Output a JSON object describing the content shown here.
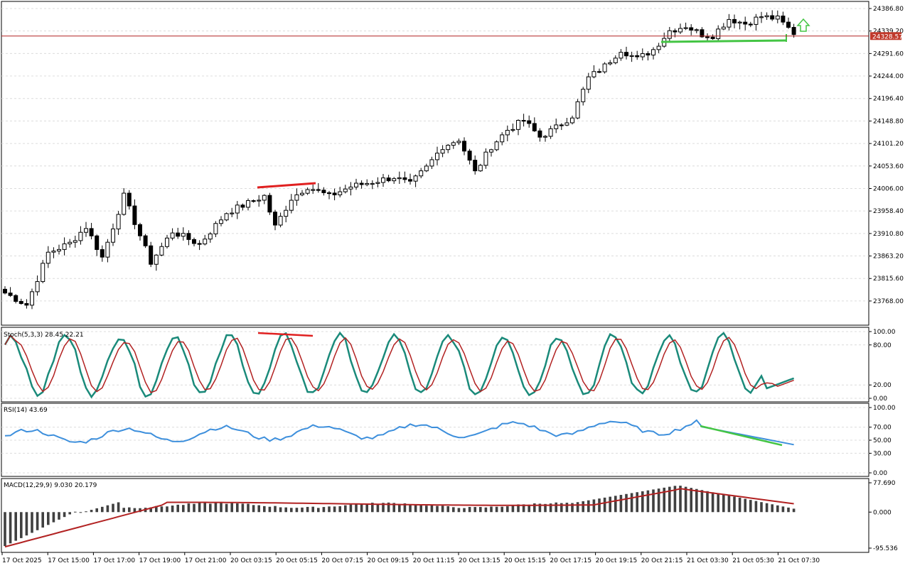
{
  "colors": {
    "background": "#ffffff",
    "grid": "#d0d0d0",
    "border": "#000000",
    "price_line": "#b22222",
    "price_badge": "#c0392b",
    "candle": "#000000",
    "stoch_main": "#1a8a7a",
    "stoch_signal": "#b22222",
    "rsi": "#3d8fdc",
    "macd_hist": "#404040",
    "macd_signal": "#b22222",
    "trend_red": "#e02020",
    "trend_green": "#44c544",
    "arrow": "#44c544"
  },
  "price_axis": {
    "ticks": [
      "24386.80",
      "24339.20",
      "24291.60",
      "24244.00",
      "24196.40",
      "24148.80",
      "24101.20",
      "24053.60",
      "24006.00",
      "23958.40",
      "23910.80",
      "23863.20",
      "23815.60",
      "23768.00"
    ],
    "current_price": "24328.57",
    "current_value": 24328.57
  },
  "time_axis": {
    "labels": [
      "17 Oct 2025",
      "17 Oct 15:00",
      "17 Oct 17:00",
      "17 Oct 19:00",
      "17 Oct 21:00",
      "20 Oct 03:15",
      "20 Oct 05:15",
      "20 Oct 07:15",
      "20 Oct 09:15",
      "20 Oct 11:15",
      "20 Oct 13:15",
      "20 Oct 15:15",
      "20 Oct 17:15",
      "20 Oct 19:15",
      "20 Oct 21:15",
      "21 Oct 03:30",
      "21 Oct 05:30",
      "21 Oct 07:30"
    ]
  },
  "stoch": {
    "label": "Stoch(5,3,3) 28.45 22.21",
    "ticks": [
      "100.00",
      "80.00",
      "20.00",
      "0.00"
    ]
  },
  "rsi": {
    "label": "RSI(14) 43.69",
    "ticks": [
      "100.00",
      "70.00",
      "50.00",
      "30.00",
      "0.00"
    ]
  },
  "macd": {
    "label": "MACD(12,29,9) 9.030 20.179",
    "ticks": [
      "77.690",
      "0.000",
      "-95.536"
    ]
  },
  "chart_data": {
    "type": "candlestick",
    "instrument_price_range": [
      23720,
      24400
    ],
    "waypoints": [
      [
        0,
        23785
      ],
      [
        4,
        23760
      ],
      [
        8,
        23870
      ],
      [
        12,
        23890
      ],
      [
        15,
        23925
      ],
      [
        18,
        23860
      ],
      [
        22,
        23990
      ],
      [
        24,
        23935
      ],
      [
        27,
        23850
      ],
      [
        31,
        23915
      ],
      [
        36,
        23888
      ],
      [
        41,
        23955
      ],
      [
        45,
        23975
      ],
      [
        48,
        23990
      ],
      [
        50,
        23925
      ],
      [
        53,
        23985
      ],
      [
        56,
        24010
      ],
      [
        60,
        23990
      ],
      [
        64,
        24010
      ],
      [
        68,
        24020
      ],
      [
        72,
        24030
      ],
      [
        75,
        24015
      ],
      [
        78,
        24050
      ],
      [
        81,
        24095
      ],
      [
        84,
        24110
      ],
      [
        87,
        24040
      ],
      [
        90,
        24095
      ],
      [
        93,
        24130
      ],
      [
        96,
        24150
      ],
      [
        99,
        24115
      ],
      [
        102,
        24135
      ],
      [
        105,
        24160
      ],
      [
        108,
        24240
      ],
      [
        111,
        24265
      ],
      [
        114,
        24300
      ],
      [
        117,
        24280
      ],
      [
        120,
        24300
      ],
      [
        123,
        24340
      ],
      [
        126,
        24350
      ],
      [
        129,
        24332
      ],
      [
        131,
        24330
      ],
      [
        134,
        24365
      ],
      [
        137,
        24355
      ],
      [
        140,
        24370
      ],
      [
        143,
        24365
      ],
      [
        146,
        24335
      ]
    ]
  }
}
